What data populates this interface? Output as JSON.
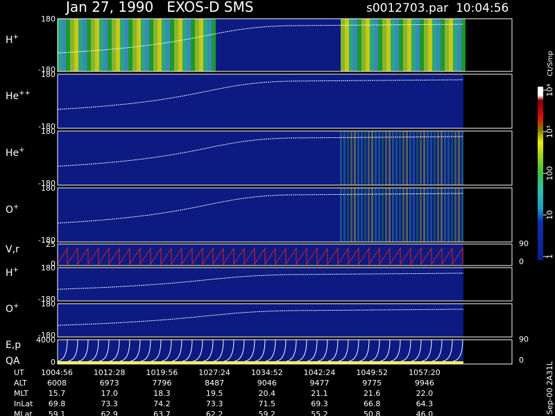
{
  "header": {
    "title": "Jan 27, 1990   EXOS-D SMS",
    "file": "s0012703.par  10:04:56"
  },
  "panels": [
    {
      "label": "H",
      "sup": "+",
      "ticks": [
        "180",
        "-180"
      ]
    },
    {
      "label": "He",
      "sup": "++",
      "ticks": [
        "180",
        "-180"
      ]
    },
    {
      "label": "He",
      "sup": "+",
      "ticks": [
        "180",
        "-180"
      ]
    },
    {
      "label": "O",
      "sup": "+",
      "ticks": [
        "180",
        "-180"
      ]
    },
    {
      "label": "V,r",
      "ticks": [
        "25",
        "0"
      ],
      "right_ticks": [
        "90",
        "0"
      ]
    },
    {
      "label": "H",
      "sup": "+",
      "ticks": [
        "180",
        "-180"
      ]
    },
    {
      "label": "O",
      "sup": "+",
      "ticks": [
        "180",
        "-180"
      ]
    },
    {
      "label": "E,p",
      "label2": "QA",
      "ticks": [
        "4000",
        "0"
      ],
      "right_ticks": [
        "90",
        "0"
      ]
    }
  ],
  "colorbar": {
    "unit": "Ct/Smp",
    "labels": [
      "1",
      "10",
      "100",
      "10³",
      "10⁴"
    ]
  },
  "table": {
    "rows": [
      [
        "UT",
        "1004:56",
        "1012:28",
        "1019:56",
        "1027:24",
        "1034:52",
        "1042:24",
        "1049:52",
        "1057:20"
      ],
      [
        "ALT",
        "6008",
        "6973",
        "7796",
        "8487",
        "9046",
        "9477",
        "9775",
        "9946"
      ],
      [
        "MLT",
        "15.7",
        "17.0",
        "18.3",
        "19.5",
        "20.4",
        "21.1",
        "21.6",
        "22.0"
      ],
      [
        "InLat",
        "69.8",
        "73.3",
        "74.2",
        "73.3",
        "71.5",
        "69.3",
        "66.8",
        "64.3"
      ],
      [
        "MLat",
        "59.1",
        "62.9",
        "63.7",
        "62.2",
        "59.2",
        "55.2",
        "50.8",
        "46.0"
      ]
    ]
  },
  "footer": "Sep-00 2A31L"
}
